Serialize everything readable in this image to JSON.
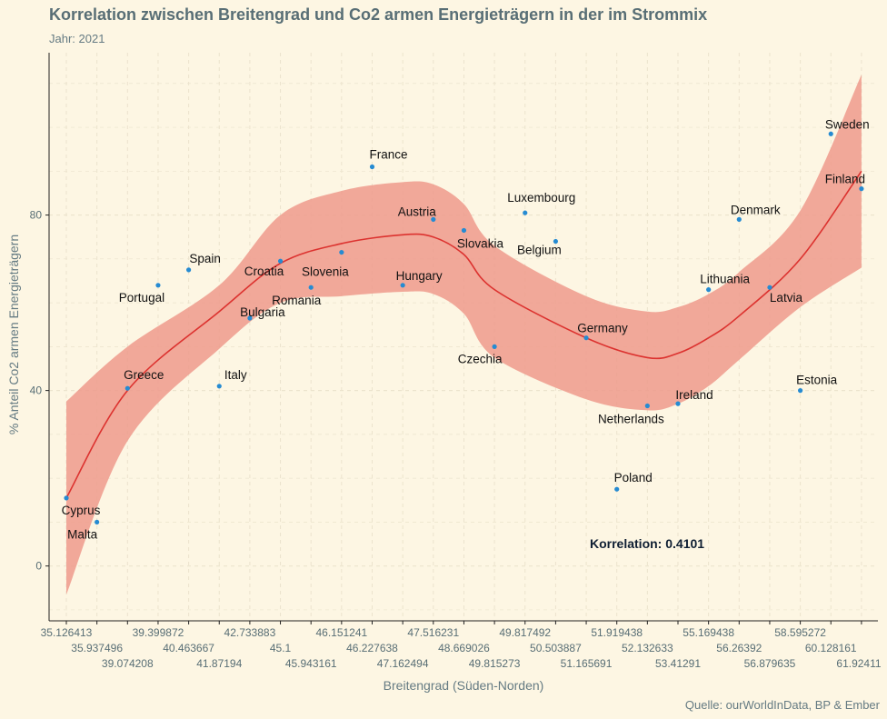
{
  "chart_data": {
    "type": "scatter",
    "title": "Korrelation zwischen Breitengrad und Co2 armen Energieträgern in der im Strommix",
    "subtitle": "Jahr: 2021",
    "xlabel": "Breitengrad (Süden-Norden)",
    "ylabel": "% Anteil Co2 armen Energieträgern",
    "caption": "Quelle: ourWorldInData, BP & Ember",
    "annotation": "Korrelation:  0.4101",
    "x_axis": "categorical",
    "categories": [
      "35.126413",
      "35.937496",
      "39.074208",
      "39.399872",
      "40.463667",
      "41.87194",
      "42.733883",
      "45.1",
      "45.943161",
      "46.151241",
      "46.227638",
      "47.162494",
      "47.516231",
      "48.669026",
      "49.815273",
      "49.817492",
      "50.503887",
      "51.165691",
      "51.919438",
      "52.132633",
      "53.41291",
      "55.169438",
      "56.26392",
      "56.879635",
      "58.595272",
      "60.128161",
      "61.92411"
    ],
    "yticks": [
      0,
      40,
      80
    ],
    "ylim": [
      -12.5,
      117
    ],
    "grid": true,
    "points": [
      {
        "label": "Cyprus",
        "x": "35.126413",
        "y": 15.5
      },
      {
        "label": "Malta",
        "x": "35.937496",
        "y": 10.0
      },
      {
        "label": "Greece",
        "x": "39.074208",
        "y": 40.5
      },
      {
        "label": "Portugal",
        "x": "39.399872",
        "y": 64.0
      },
      {
        "label": "Spain",
        "x": "40.463667",
        "y": 67.5
      },
      {
        "label": "Italy",
        "x": "41.87194",
        "y": 41.0
      },
      {
        "label": "Bulgaria",
        "x": "42.733883",
        "y": 56.5
      },
      {
        "label": "Croatia",
        "x": "45.1",
        "y": 69.5
      },
      {
        "label": "Romania",
        "x": "45.943161",
        "y": 63.5
      },
      {
        "label": "Slovenia",
        "x": "46.151241",
        "y": 71.5
      },
      {
        "label": "France",
        "x": "46.227638",
        "y": 91.0
      },
      {
        "label": "Hungary",
        "x": "47.162494",
        "y": 64.0
      },
      {
        "label": "Austria",
        "x": "47.516231",
        "y": 79.0
      },
      {
        "label": "Slovakia",
        "x": "48.669026",
        "y": 76.5
      },
      {
        "label": "Czechia",
        "x": "49.815273",
        "y": 50.0
      },
      {
        "label": "Luxembourg",
        "x": "49.817492",
        "y": 80.5
      },
      {
        "label": "Belgium",
        "x": "50.503887",
        "y": 74.0
      },
      {
        "label": "Germany",
        "x": "51.165691",
        "y": 52.0
      },
      {
        "label": "Poland",
        "x": "51.919438",
        "y": 17.5
      },
      {
        "label": "Netherlands",
        "x": "52.132633",
        "y": 36.5
      },
      {
        "label": "Ireland",
        "x": "53.41291",
        "y": 37.0
      },
      {
        "label": "Lithuania",
        "x": "55.169438",
        "y": 63.0
      },
      {
        "label": "Denmark",
        "x": "56.26392",
        "y": 79.0
      },
      {
        "label": "Latvia",
        "x": "56.879635",
        "y": 63.5
      },
      {
        "label": "Estonia",
        "x": "58.595272",
        "y": 40.0
      },
      {
        "label": "Sweden",
        "x": "60.128161",
        "y": 98.5
      },
      {
        "label": "Finland",
        "x": "61.92411",
        "y": 86.0
      }
    ],
    "smooth": {
      "method": "loess",
      "fit": [
        {
          "x": "35.126413",
          "y": 15.5
        },
        {
          "x": "39.074208",
          "y": 40.0
        },
        {
          "x": "41.87194",
          "y": 58.0
        },
        {
          "x": "45.1",
          "y": 69.0
        },
        {
          "x": "46.151241",
          "y": 73.5
        },
        {
          "x": "47.162494",
          "y": 75.5
        },
        {
          "x": "47.516231",
          "y": 75.0
        },
        {
          "x": "48.669026",
          "y": 71.0
        },
        {
          "x": "49.815273",
          "y": 63.0
        },
        {
          "x": "51.165691",
          "y": 52.0
        },
        {
          "x": "52.132633",
          "y": 47.5
        },
        {
          "x": "53.41291",
          "y": 48.5
        },
        {
          "x": "55.169438",
          "y": 52.0
        },
        {
          "x": "56.26392",
          "y": 57.0
        },
        {
          "x": "58.595272",
          "y": 70.0
        },
        {
          "x": "61.92411",
          "y": 90.0
        }
      ],
      "upper": [
        {
          "x": "35.126413",
          "y": 37.5
        },
        {
          "x": "39.074208",
          "y": 50.0
        },
        {
          "x": "41.87194",
          "y": 64.0
        },
        {
          "x": "45.1",
          "y": 80.0
        },
        {
          "x": "46.151241",
          "y": 85.5
        },
        {
          "x": "47.162494",
          "y": 87.5
        },
        {
          "x": "47.516231",
          "y": 87.0
        },
        {
          "x": "48.669026",
          "y": 82.5
        },
        {
          "x": "49.815273",
          "y": 73.0
        },
        {
          "x": "51.165691",
          "y": 61.5
        },
        {
          "x": "52.132633",
          "y": 58.0
        },
        {
          "x": "53.41291",
          "y": 59.0
        },
        {
          "x": "55.169438",
          "y": 62.0
        },
        {
          "x": "56.26392",
          "y": 67.0
        },
        {
          "x": "58.595272",
          "y": 81.0
        },
        {
          "x": "61.92411",
          "y": 112.0
        }
      ],
      "lower": [
        {
          "x": "35.126413",
          "y": -6.5
        },
        {
          "x": "39.074208",
          "y": 28.5
        },
        {
          "x": "41.87194",
          "y": 49.5
        },
        {
          "x": "45.1",
          "y": 60.0
        },
        {
          "x": "46.151241",
          "y": 61.5
        },
        {
          "x": "47.162494",
          "y": 62.5
        },
        {
          "x": "47.516231",
          "y": 62.0
        },
        {
          "x": "48.669026",
          "y": 57.5
        },
        {
          "x": "49.815273",
          "y": 47.5
        },
        {
          "x": "51.165691",
          "y": 38.0
        },
        {
          "x": "52.132633",
          "y": 35.5
        },
        {
          "x": "53.41291",
          "y": 37.0
        },
        {
          "x": "55.169438",
          "y": 41.0
        },
        {
          "x": "56.26392",
          "y": 47.0
        },
        {
          "x": "58.595272",
          "y": 59.0
        },
        {
          "x": "61.92411",
          "y": 68.0
        }
      ]
    },
    "colors": {
      "background": "#FDF6E3",
      "point": "#268BD2",
      "line": "#DC322F",
      "band": "#EE9A8C",
      "grid": "#ECE3CD",
      "axis": "#222222",
      "text": "#586E75"
    }
  }
}
